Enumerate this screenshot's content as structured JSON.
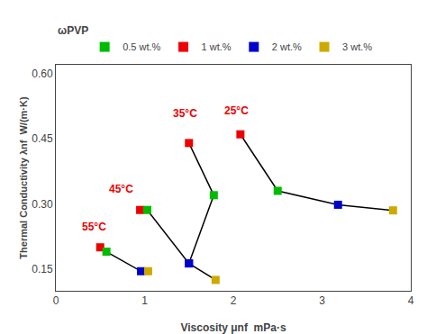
{
  "chart_data": {
    "type": "line",
    "xlabel": "Viscosity μnf  mPa·s",
    "ylabel": "Thermal Conductivity λnf  W/(m·K)",
    "xlim": [
      0,
      4
    ],
    "ylim": [
      0.1,
      0.62
    ],
    "xticks": [
      0,
      1,
      2,
      3,
      4
    ],
    "yticks": [
      0.15,
      {
        "value": 0.3,
        "label": "0.30"
      },
      0.45,
      {
        "value": 0.6,
        "label": "0.60"
      }
    ],
    "grid": false,
    "legend": "top",
    "legend_title": "ωPVP",
    "series": [
      {
        "name": "0.5 wt.%",
        "color": "#00bb00",
        "marker": "square"
      },
      {
        "name": "1 wt.%",
        "color": "#ee0000",
        "marker": "square"
      },
      {
        "name": "2 wt.%",
        "color": "#0000cc",
        "marker": "square"
      },
      {
        "name": "3 wt.%",
        "color": "#ccaa00",
        "marker": "square"
      }
    ],
    "groups": [
      {
        "x": [
          2.08,
          2.5,
          3.18,
          3.8
        ],
        "y": [
          0.46,
          0.33,
          0.298,
          0.285
        ],
        "colors": [
          "#ee0000",
          "#00bb00",
          "#0000cc",
          "#ccaa00"
        ],
        "color": "#000000",
        "marker": "square",
        "line_style": "solid"
      },
      {
        "x": [
          1.5,
          1.78,
          1.5
        ],
        "y": [
          0.44,
          0.32,
          0.163
        ],
        "colors": [
          "#ee0000",
          "#00bb00",
          "#0000cc"
        ],
        "color": "#000000",
        "marker": "square",
        "line_style": "solid"
      },
      {
        "x": [
          0.95,
          1.03,
          1.5,
          1.8
        ],
        "y": [
          0.286,
          0.286,
          0.163,
          0.125
        ],
        "colors": [
          "#ee0000",
          "#00bb00",
          "#0000cc",
          "#ccaa00"
        ],
        "color": "#000000",
        "marker": "square",
        "line_style": "solid"
      },
      {
        "x": [
          0.5,
          0.57,
          0.96,
          1.04
        ],
        "y": [
          0.2,
          0.19,
          0.145,
          0.145
        ],
        "colors": [
          "#ee0000",
          "#00bb00",
          "#0000cc",
          "#ccaa00"
        ],
        "color": "#000000",
        "marker": "square",
        "line_style": "solid"
      }
    ],
    "annotations": [
      {
        "text": "25°C",
        "x": 1.88,
        "y": 0.495,
        "color": "#ee0000"
      },
      {
        "text": "35°C",
        "x": 1.3,
        "y": 0.49,
        "color": "#ee0000"
      },
      {
        "text": "45°C",
        "x": 0.58,
        "y": 0.316,
        "color": "#ee0000"
      },
      {
        "text": "55°C",
        "x": 0.27,
        "y": 0.228,
        "color": "#ee0000"
      }
    ]
  }
}
